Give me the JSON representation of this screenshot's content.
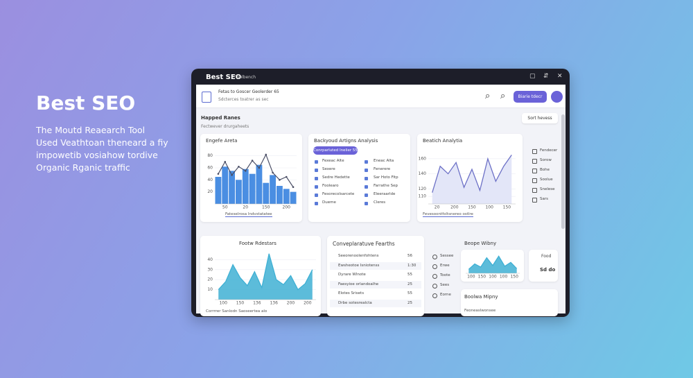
{
  "hero": {
    "title": "Best SEO",
    "lines": [
      "The Moutd Reaearch Tool",
      "Used Veathtoan theneard a fiy",
      "impowetib vosiahow tordive",
      "Organic Rganic traffic"
    ]
  },
  "window": {
    "title": "Best SEO",
    "menu": "Toolbench",
    "header": {
      "title": "Fetas to Goscer Geolerder 65",
      "subtitle": "Sdcterces toatrer as sec",
      "button": "Biarie tdecr"
    },
    "section": {
      "title": "Happed Ranes",
      "subtitle": "Fectwever drurgaheets",
      "sort": "Sort hevess"
    },
    "bar_panel": {
      "title": "Engefe Areta",
      "kind": "bar",
      "color": "#4a8ee2",
      "line_color": "#4b4f66",
      "ylim": [
        0,
        90
      ],
      "yticks": [
        20,
        40,
        60,
        80
      ],
      "values": [
        45,
        62,
        55,
        40,
        58,
        50,
        65,
        35,
        48,
        30,
        25,
        20
      ],
      "line": [
        50,
        70,
        48,
        62,
        55,
        72,
        60,
        82,
        52,
        40,
        45,
        28
      ],
      "x_labels": [
        "50",
        "20",
        "150",
        "200"
      ],
      "caption": "Fateselrosa Indvstatatee"
    },
    "keyword_panel": {
      "title": "Backyoud Artigns Analysis",
      "button": "Conrparluted Inelier 55",
      "items": [
        [
          "Fexeac Alte",
          "Eneac Alta"
        ],
        [
          "Sexere",
          "Fenerere"
        ],
        [
          "Sedre Hedette",
          "Sar Hoto Fitp"
        ],
        [
          "Foolearo",
          "Farrathe Sep"
        ],
        [
          "Fesorecolsarcete",
          "Eleeraarlde"
        ],
        [
          "Dueme",
          "Cleres"
        ]
      ]
    },
    "line_panel": {
      "title": "Beatich Analytia",
      "kind": "line",
      "color": "#6c70c6",
      "fill": "#e3e6f8",
      "ylim": [
        100,
        170
      ],
      "yticks": [
        110,
        120,
        140,
        160
      ],
      "values": [
        115,
        150,
        140,
        155,
        122,
        146,
        118,
        160,
        130,
        150,
        165
      ],
      "x_labels": [
        "20",
        "200",
        "150",
        "100",
        "150"
      ],
      "caption": "Fevesoontfoltsnereo ostlre"
    },
    "side_menu": [
      "Fendecer",
      "Sorow",
      "Bohe",
      "Soolue",
      "Snelese",
      "Sars"
    ],
    "area_panel": {
      "title": "Footw Rdestars",
      "kind": "area",
      "color": "#3fb0d4",
      "ylim": [
        0,
        50
      ],
      "yticks": [
        10,
        20,
        30,
        40
      ],
      "values": [
        10,
        18,
        35,
        22,
        14,
        28,
        12,
        46,
        20,
        15,
        24,
        10,
        16,
        30
      ],
      "x_labels": [
        "100",
        "150",
        "136",
        "136",
        "200",
        "200"
      ],
      "caption": "Corrrrer Sanlodn Saoseertea alo"
    },
    "compare_panel": {
      "title": "Conveplaratuve Fearths",
      "rows": [
        {
          "label": "Seeorenoolenfohtens",
          "value": "56"
        },
        {
          "label": "Ewsheotoe Isniotenss",
          "value": "1:30"
        },
        {
          "label": "Dyrare Wlnote",
          "value": "55"
        },
        {
          "label": "Faesyioe orlandoalhe",
          "value": "25"
        },
        {
          "label": "Elotes Srisets",
          "value": "55"
        },
        {
          "label": "Drbe sotesrealcta",
          "value": "25"
        }
      ]
    },
    "side_menu2": [
      "Sessee",
      "Erwe",
      "Toote",
      "Sees",
      "Eorne"
    ],
    "small_panel": {
      "title": "Beope Wibny",
      "kind": "area",
      "color": "#3fb0d4",
      "ylim": [
        0,
        25
      ],
      "values": [
        5,
        12,
        8,
        20,
        10,
        22,
        9,
        14,
        6
      ],
      "x_labels": [
        "100",
        "150",
        "100",
        "100",
        "150"
      ]
    },
    "stat_box": {
      "label": "Food",
      "value": "Sd do"
    },
    "bottom_panel": {
      "title": "Boolwa Mipny",
      "subtitle": "Feoneaslwonsee"
    }
  }
}
